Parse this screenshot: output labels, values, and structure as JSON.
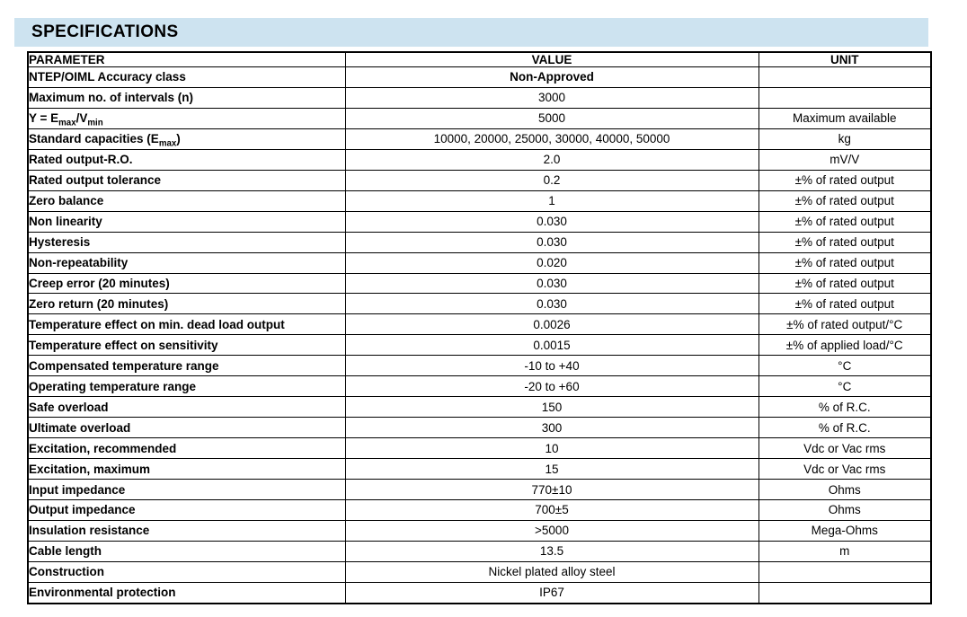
{
  "header": {
    "title": "SPECIFICATIONS",
    "bar_color": "#cde3f0"
  },
  "table": {
    "headers": {
      "parameter": "PARAMETER",
      "value": "VALUE",
      "unit": "UNIT"
    },
    "rows": [
      {
        "parameter": "NTEP/OIML Accuracy class",
        "value": "Non-Approved",
        "value_bold": true,
        "unit": ""
      },
      {
        "parameter": "Maximum no. of intervals (n)",
        "value": "3000",
        "unit": ""
      },
      {
        "parameter": [
          {
            "text": "Y = E"
          },
          {
            "text": "max",
            "sub": true
          },
          {
            "text": "/V"
          },
          {
            "text": "min",
            "sub": true
          }
        ],
        "value": "5000",
        "unit": "Maximum available"
      },
      {
        "parameter": [
          {
            "text": "Standard capacities (E"
          },
          {
            "text": "max",
            "sub": true
          },
          {
            "text": ")"
          }
        ],
        "value": "10000, 20000, 25000, 30000, 40000, 50000",
        "unit": "kg"
      },
      {
        "parameter": "Rated output-R.O.",
        "value": "2.0",
        "unit": "mV/V"
      },
      {
        "parameter": "Rated output tolerance",
        "value": "0.2",
        "unit": "±% of rated output"
      },
      {
        "parameter": "Zero balance",
        "value": "1",
        "unit": "±% of rated output"
      },
      {
        "parameter": "Non linearity",
        "value": "0.030",
        "unit": "±% of rated output"
      },
      {
        "parameter": "Hysteresis",
        "value": "0.030",
        "unit": "±% of rated output"
      },
      {
        "parameter": "Non-repeatability",
        "value": "0.020",
        "unit": "±% of rated output"
      },
      {
        "parameter": "Creep error (20 minutes)",
        "value": "0.030",
        "unit": "±% of rated output"
      },
      {
        "parameter": "Zero return (20 minutes)",
        "value": "0.030",
        "unit": "±% of rated output"
      },
      {
        "parameter": "Temperature effect on min. dead load output",
        "value": "0.0026",
        "unit": "±% of rated output/°C"
      },
      {
        "parameter": "Temperature effect on sensitivity",
        "value": "0.0015",
        "unit": "±% of applied load/°C"
      },
      {
        "parameter": "Compensated temperature range",
        "value": "-10 to +40",
        "unit": "°C"
      },
      {
        "parameter": "Operating temperature range",
        "value": "-20 to +60",
        "unit": "°C"
      },
      {
        "parameter": "Safe overload",
        "value": "150",
        "unit": "% of R.C."
      },
      {
        "parameter": "Ultimate overload",
        "value": "300",
        "unit": "% of R.C."
      },
      {
        "parameter": "Excitation, recommended",
        "value": "10",
        "unit": "Vdc or Vac rms"
      },
      {
        "parameter": "Excitation, maximum",
        "value": "15",
        "unit": "Vdc or Vac rms"
      },
      {
        "parameter": "Input impedance",
        "value": "770±10",
        "unit": "Ohms"
      },
      {
        "parameter": "Output impedance",
        "value": "700±5",
        "unit": "Ohms"
      },
      {
        "parameter": "Insulation resistance",
        "value": ">5000",
        "unit": "Mega-Ohms"
      },
      {
        "parameter": "Cable length",
        "value": "13.5",
        "unit": "m"
      },
      {
        "parameter": "Construction",
        "value": "Nickel plated alloy steel",
        "unit": ""
      },
      {
        "parameter": "Environmental protection",
        "value": "IP67",
        "unit": ""
      }
    ]
  }
}
